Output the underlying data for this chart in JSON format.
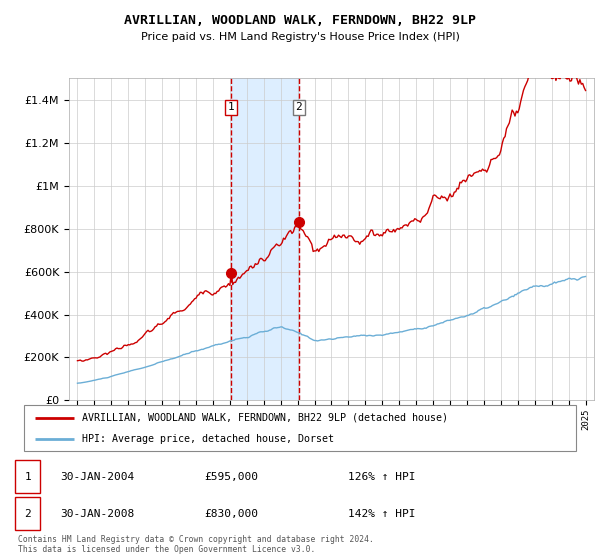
{
  "title": "AVRILLIAN, WOODLAND WALK, FERNDOWN, BH22 9LP",
  "subtitle": "Price paid vs. HM Land Registry's House Price Index (HPI)",
  "legend_line1": "AVRILLIAN, WOODLAND WALK, FERNDOWN, BH22 9LP (detached house)",
  "legend_line2": "HPI: Average price, detached house, Dorset",
  "transaction1_date": "30-JAN-2004",
  "transaction1_price": 595000,
  "transaction1_hpi": "126% ↑ HPI",
  "transaction2_date": "30-JAN-2008",
  "transaction2_price": 830000,
  "transaction2_hpi": "142% ↑ HPI",
  "footer": "Contains HM Land Registry data © Crown copyright and database right 2024.\nThis data is licensed under the Open Government Licence v3.0.",
  "hpi_color": "#6baed6",
  "price_color": "#cc0000",
  "shade_color": "#ddeeff",
  "ylim": [
    0,
    1500000
  ],
  "yticks": [
    0,
    200000,
    400000,
    600000,
    800000,
    1000000,
    1200000,
    1400000
  ],
  "transaction1_year": 2004.08,
  "transaction2_year": 2008.08
}
